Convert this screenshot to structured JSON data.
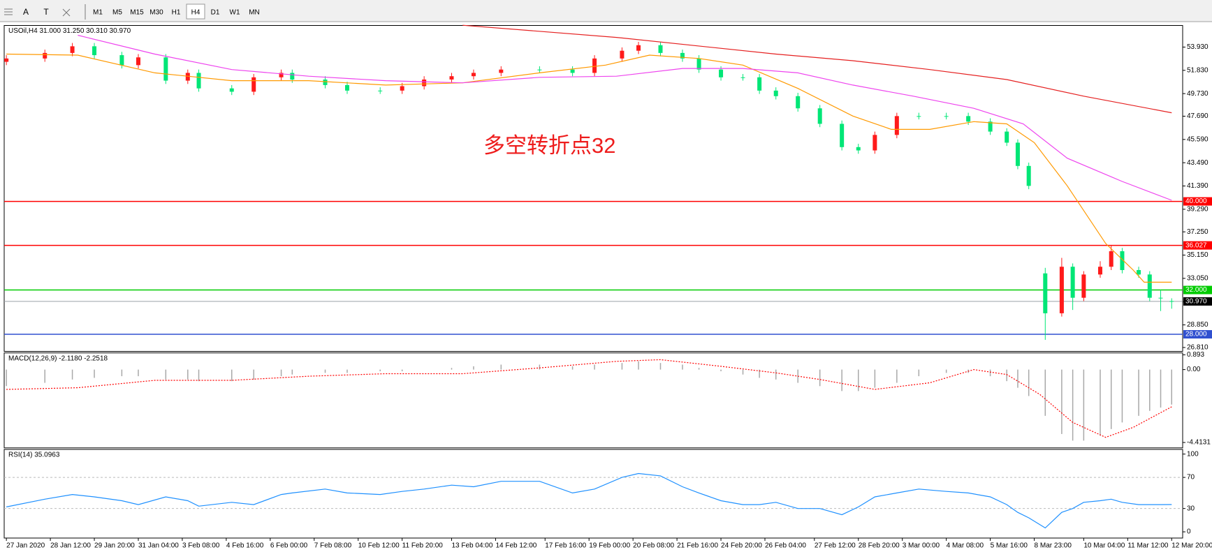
{
  "toolbar": {
    "tools": [
      "A",
      "T"
    ],
    "timeframes": [
      "M1",
      "M5",
      "M15",
      "M30",
      "H1",
      "H4",
      "D1",
      "W1",
      "MN"
    ],
    "active": "H4"
  },
  "chart_data": [
    {
      "type": "candlestick",
      "title": "USOil,H4  31.000 31.250 30.310 30.970",
      "annotation": "多空转折点32",
      "up_color": "#ff1a1a",
      "down_color": "#00e676",
      "x": [
        0,
        7,
        12,
        16,
        21,
        24,
        29,
        33,
        35,
        41,
        45,
        50,
        52,
        58,
        62,
        68,
        72,
        76,
        81,
        85,
        90,
        97,
        103,
        107,
        112,
        115,
        119,
        123,
        126,
        130,
        134,
        137,
        140,
        144,
        148,
        152,
        155,
        158,
        162,
        166,
        171,
        175,
        179,
        182,
        184,
        186,
        189,
        192,
        194,
        196,
        199,
        201,
        203,
        206,
        208,
        210,
        212
      ],
      "open": [
        52.6,
        52.9,
        53.4,
        54.0,
        53.2,
        52.3,
        53.0,
        50.9,
        51.6,
        50.2,
        49.9,
        51.2,
        51.6,
        51.0,
        50.5,
        50.0,
        50.0,
        50.4,
        51.0,
        51.3,
        51.6,
        51.9,
        51.9,
        51.6,
        52.9,
        53.6,
        54.1,
        53.4,
        52.9,
        51.9,
        51.2,
        51.2,
        50.0,
        49.5,
        48.4,
        47.0,
        44.9,
        44.6,
        46.0,
        47.7,
        47.7,
        47.7,
        47.2,
        46.3,
        45.3,
        43.2,
        33.5,
        29.9,
        34.1,
        31.3,
        33.4,
        34.1,
        35.5,
        33.8,
        33.4,
        31.3,
        31.0
      ],
      "high": [
        53.2,
        53.7,
        54.3,
        54.3,
        53.5,
        53.3,
        53.3,
        51.9,
        51.9,
        50.5,
        51.5,
        51.9,
        51.9,
        51.3,
        50.8,
        50.3,
        50.7,
        51.3,
        51.6,
        51.9,
        52.2,
        52.2,
        52.2,
        53.2,
        53.9,
        54.4,
        54.4,
        53.7,
        53.2,
        52.2,
        51.5,
        51.5,
        50.3,
        49.8,
        48.7,
        47.3,
        45.2,
        46.3,
        48.0,
        48.0,
        48.0,
        48.0,
        47.5,
        46.6,
        45.6,
        43.5,
        34.0,
        34.9,
        34.4,
        33.7,
        34.6,
        36.0,
        35.8,
        34.1,
        33.7,
        32.0,
        31.25
      ],
      "low": [
        52.3,
        52.6,
        53.1,
        52.9,
        52.0,
        52.0,
        50.6,
        50.6,
        49.9,
        49.6,
        49.6,
        50.9,
        50.7,
        50.2,
        49.7,
        49.7,
        49.7,
        50.1,
        50.7,
        51.0,
        51.3,
        51.6,
        51.3,
        51.3,
        52.6,
        53.3,
        53.1,
        52.6,
        51.6,
        50.9,
        50.9,
        49.7,
        49.2,
        48.1,
        46.7,
        44.6,
        44.3,
        44.3,
        45.7,
        47.4,
        47.4,
        46.9,
        46.0,
        45.0,
        42.9,
        41.1,
        27.5,
        29.6,
        30.2,
        31.0,
        33.1,
        33.8,
        33.5,
        33.1,
        31.0,
        30.1,
        30.31
      ],
      "close": [
        52.9,
        53.4,
        54.0,
        53.2,
        52.3,
        53.0,
        50.9,
        51.6,
        50.2,
        49.9,
        51.2,
        51.6,
        51.0,
        50.5,
        50.0,
        50.0,
        50.4,
        51.0,
        51.3,
        51.6,
        51.9,
        51.9,
        51.6,
        52.9,
        53.6,
        54.1,
        53.4,
        52.9,
        51.9,
        51.2,
        51.2,
        50.0,
        49.5,
        48.4,
        47.0,
        44.9,
        44.6,
        46.0,
        47.7,
        47.7,
        47.7,
        47.2,
        46.3,
        45.3,
        43.2,
        41.4,
        29.9,
        34.1,
        31.3,
        33.4,
        34.1,
        35.5,
        33.8,
        33.4,
        31.3,
        31.3,
        30.97
      ],
      "series": [
        {
          "color": "#ff9900",
          "x": [
            0,
            13,
            27,
            41,
            55,
            69,
            83,
            97,
            109,
            117,
            126,
            134,
            144,
            154,
            161,
            168,
            176,
            182,
            187,
            193,
            200,
            205,
            207,
            212
          ],
          "values": [
            53.3,
            53.2,
            51.6,
            50.9,
            50.9,
            50.5,
            50.7,
            51.6,
            52.3,
            53.2,
            52.9,
            52.3,
            50.2,
            47.7,
            46.5,
            46.5,
            47.2,
            47.0,
            45.3,
            41.4,
            36.2,
            33.8,
            32.7,
            32.7
          ]
        },
        {
          "color": "#ee44ee",
          "x": [
            13,
            27,
            41,
            55,
            69,
            83,
            97,
            111,
            123,
            134,
            144,
            154,
            165,
            176,
            185,
            193,
            203,
            212
          ],
          "values": [
            55.0,
            53.3,
            51.9,
            51.3,
            50.9,
            50.7,
            51.2,
            51.3,
            52.0,
            52.0,
            51.6,
            50.5,
            49.5,
            48.4,
            47.0,
            43.9,
            41.8,
            40.1
          ]
        },
        {
          "color": "#e52020",
          "x": [
            83,
            111,
            140,
            154,
            168,
            182,
            196,
            212
          ],
          "values": [
            55.9,
            54.8,
            53.3,
            52.7,
            51.9,
            51.0,
            49.5,
            48.0
          ]
        }
      ],
      "levels": [
        {
          "value": 40,
          "label": "40.000",
          "color": "#ff0000"
        },
        {
          "value": 36.027,
          "label": "36.027",
          "color": "#ff0000"
        },
        {
          "value": 32,
          "label": "32.000",
          "color": "#00cc00"
        },
        {
          "value": 30.97,
          "label": "30.970",
          "color": "#000000"
        },
        {
          "value": 28,
          "label": "28.000",
          "color": "#3050d0"
        }
      ],
      "xlim": [
        -0.4,
        214
      ],
      "ylim": [
        26.46,
        55.88
      ],
      "yticks": [
        {
          "value": 53.93,
          "label": "53.930"
        },
        {
          "value": 51.83,
          "label": "51.830"
        },
        {
          "value": 49.73,
          "label": "49.730"
        },
        {
          "value": 47.69,
          "label": "47.690"
        },
        {
          "value": 45.59,
          "label": "45.590"
        },
        {
          "value": 43.49,
          "label": "43.490"
        },
        {
          "value": 41.39,
          "label": "41.390"
        },
        {
          "value": 39.29,
          "label": "39.290"
        },
        {
          "value": 37.25,
          "label": "37.250"
        },
        {
          "value": 35.15,
          "label": "35.150"
        },
        {
          "value": 33.05,
          "label": "33.050"
        },
        {
          "value": 30.95,
          "label": "30.950"
        },
        {
          "value": 28.85,
          "label": "28.850"
        },
        {
          "value": 26.81,
          "label": "26.810"
        }
      ]
    },
    {
      "type": "indicator",
      "title": "MACD(12,26,9) -2.1180 -2.2518",
      "series": [
        {
          "style": "histogram",
          "color": "#a8a8a8",
          "x": [
            0,
            7,
            12,
            16,
            21,
            24,
            29,
            33,
            35,
            41,
            45,
            50,
            52,
            58,
            62,
            68,
            72,
            76,
            81,
            85,
            90,
            97,
            103,
            107,
            112,
            115,
            119,
            123,
            126,
            130,
            134,
            137,
            140,
            144,
            148,
            152,
            155,
            158,
            162,
            166,
            171,
            175,
            179,
            182,
            184,
            186,
            189,
            192,
            194,
            196,
            199,
            201,
            203,
            206,
            208,
            210,
            212
          ],
          "values": [
            -1.0,
            -0.8,
            -0.6,
            -0.5,
            -0.4,
            -0.4,
            -0.6,
            -0.6,
            -0.7,
            -0.7,
            -0.6,
            -0.4,
            -0.3,
            -0.2,
            -0.2,
            -0.1,
            -0.1,
            0.0,
            0.1,
            0.2,
            0.3,
            0.3,
            0.2,
            0.3,
            0.4,
            0.5,
            0.4,
            0.3,
            0.1,
            -0.1,
            -0.3,
            -0.5,
            -0.6,
            -0.8,
            -1.0,
            -1.3,
            -1.3,
            -1.1,
            -0.8,
            -0.4,
            -0.2,
            -0.2,
            -0.4,
            -0.7,
            -1.1,
            -1.6,
            -2.8,
            -3.9,
            -4.3,
            -4.3,
            -4.0,
            -3.6,
            -3.2,
            -2.8,
            -2.5,
            -2.3,
            -2.118
          ]
        },
        {
          "style": "dotted",
          "color": "#ff0000",
          "x": [
            0,
            13,
            27,
            41,
            55,
            69,
            83,
            97,
            111,
            119,
            130,
            140,
            148,
            158,
            168,
            176,
            182,
            188,
            194,
            200,
            205,
            212
          ],
          "values": [
            -1.2,
            -1.1,
            -0.65,
            -0.65,
            -0.4,
            -0.25,
            -0.25,
            0.1,
            0.5,
            0.6,
            0.2,
            -0.2,
            -0.6,
            -1.2,
            -0.8,
            0,
            -0.3,
            -1.5,
            -3.2,
            -4.1,
            -3.5,
            -2.2518
          ]
        }
      ],
      "xlim": [
        -0.4,
        214
      ],
      "ylim": [
        -4.74,
        1.01
      ],
      "yticks": [
        0.893,
        {
          "value": 0,
          "label": "0.00"
        },
        -4.4131
      ]
    },
    {
      "type": "indicator",
      "title": "RSI(14) 35.0963",
      "series": [
        {
          "style": "solid",
          "color": "#1e90ff",
          "x": [
            0,
            7,
            12,
            16,
            21,
            24,
            29,
            33,
            35,
            41,
            45,
            50,
            52,
            58,
            62,
            68,
            72,
            76,
            81,
            85,
            90,
            97,
            103,
            107,
            112,
            115,
            119,
            123,
            126,
            130,
            134,
            137,
            140,
            144,
            148,
            152,
            155,
            158,
            162,
            166,
            171,
            175,
            179,
            182,
            184,
            186,
            189,
            192,
            194,
            196,
            199,
            201,
            203,
            206,
            208,
            210,
            212
          ],
          "values": [
            32,
            42,
            48,
            45,
            40,
            35,
            45,
            40,
            33,
            38,
            35,
            48,
            50,
            55,
            50,
            48,
            52,
            55,
            60,
            58,
            65,
            65,
            50,
            55,
            70,
            75,
            72,
            58,
            50,
            40,
            35,
            35,
            38,
            30,
            30,
            22,
            32,
            45,
            50,
            55,
            52,
            50,
            45,
            35,
            25,
            18,
            5,
            25,
            30,
            38,
            40,
            42,
            38,
            35,
            35,
            35,
            35.0963
          ]
        }
      ],
      "level_lines": [
        70,
        30
      ],
      "xlim": [
        -0.4,
        214
      ],
      "ylim": [
        -8,
        106
      ],
      "yticks": [
        100,
        70,
        30,
        0
      ],
      "xticks": [
        {
          "value": 0,
          "label": "27 Jan 2020"
        },
        {
          "value": 8,
          "label": "28 Jan 12:00"
        },
        {
          "value": 16,
          "label": "29 Jan 20:00"
        },
        {
          "value": 24,
          "label": "31 Jan 04:00"
        },
        {
          "value": 32,
          "label": "3 Feb 08:00"
        },
        {
          "value": 40,
          "label": "4 Feb 16:00"
        },
        {
          "value": 48,
          "label": "6 Feb 00:00"
        },
        {
          "value": 56,
          "label": "7 Feb 08:00"
        },
        {
          "value": 64,
          "label": "10 Feb 12:00"
        },
        {
          "value": 72,
          "label": "11 Feb 20:00"
        },
        {
          "value": 81,
          "label": "13 Feb 04:00"
        },
        {
          "value": 89,
          "label": "14 Feb 12:00"
        },
        {
          "value": 98,
          "label": "17 Feb 16:00"
        },
        {
          "value": 106,
          "label": "19 Feb 00:00"
        },
        {
          "value": 114,
          "label": "20 Feb 08:00"
        },
        {
          "value": 122,
          "label": "21 Feb 16:00"
        },
        {
          "value": 130,
          "label": "24 Feb 20:00"
        },
        {
          "value": 138,
          "label": "26 Feb 04:00"
        },
        {
          "value": 147,
          "label": "27 Feb 12:00"
        },
        {
          "value": 155,
          "label": "28 Feb 20:00"
        },
        {
          "value": 163,
          "label": "3 Mar 00:00"
        },
        {
          "value": 171,
          "label": "4 Mar 08:00"
        },
        {
          "value": 179,
          "label": "5 Mar 16:00"
        },
        {
          "value": 187,
          "label": "8 Mar 23:00"
        },
        {
          "value": 196,
          "label": "10 Mar 04:00"
        },
        {
          "value": 204,
          "label": "11 Mar 12:00"
        },
        {
          "value": 212,
          "label": "12 Mar 20:00"
        }
      ]
    }
  ]
}
